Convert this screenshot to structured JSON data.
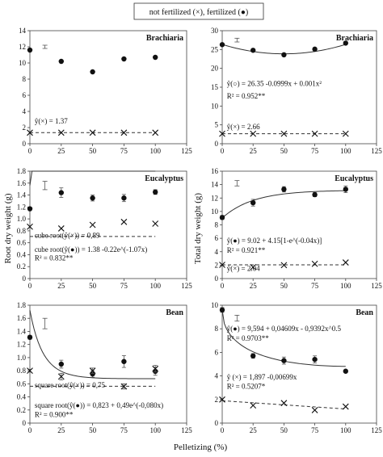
{
  "legend": {
    "text": "not fertilized (×), fertilized (●)"
  },
  "y_axis_left": "Root dry weight (g)",
  "y_axis_right": "Total dry weight (g)",
  "x_axis": "Pelletizing (%)",
  "chart_data": [
    {
      "type": "scatter",
      "title": "Brachiaria",
      "x_ticks": [
        "0",
        "25",
        "50",
        "75",
        "100",
        "125"
      ],
      "xlim": [
        0,
        125
      ],
      "ylim": [
        0,
        14
      ],
      "y_ticks": [
        "0",
        "2",
        "4",
        "6",
        "8",
        "10",
        "12",
        "14"
      ],
      "series": [
        {
          "marker": "filled-circle",
          "x": [
            0,
            25,
            50,
            75,
            100
          ],
          "y": [
            11.6,
            10.2,
            8.9,
            10.5,
            10.7
          ]
        },
        {
          "marker": "cross",
          "x": [
            0,
            25,
            50,
            75,
            100
          ],
          "y": [
            1.37,
            1.37,
            1.37,
            1.37,
            1.37
          ]
        }
      ],
      "fits": [
        {
          "series": 1,
          "style": "dashed",
          "kind": "constant",
          "value": 1.37
        }
      ],
      "error_bar_ref": {
        "x": 12,
        "y": 12,
        "half": 0.2
      },
      "equations": [
        "ŷ(×) = 1.37"
      ]
    },
    {
      "type": "scatter",
      "title": "Brachiaria",
      "x_ticks": [
        "0",
        "25",
        "50",
        "75",
        "100",
        "125"
      ],
      "xlim": [
        0,
        125
      ],
      "ylim": [
        0,
        30
      ],
      "y_ticks": [
        "0",
        "5",
        "10",
        "15",
        "20",
        "25",
        "30"
      ],
      "series": [
        {
          "marker": "filled-circle",
          "x": [
            0,
            25,
            50,
            75,
            100
          ],
          "y": [
            26.3,
            24.8,
            23.6,
            25.1,
            26.7
          ]
        },
        {
          "marker": "cross",
          "x": [
            0,
            25,
            50,
            75,
            100
          ],
          "y": [
            2.66,
            2.66,
            2.66,
            2.66,
            2.66
          ]
        }
      ],
      "fits": [
        {
          "series": 0,
          "style": "solid",
          "kind": "quadratic",
          "a": 26.35,
          "b": -0.0999,
          "c": 0.001
        },
        {
          "series": 1,
          "style": "dashed",
          "kind": "constant",
          "value": 2.66
        }
      ],
      "error_bar_ref": {
        "x": 12,
        "y": 27.5,
        "half": 0.5
      },
      "equations": [
        "ŷ(○) = 26.35 -0.0999x + 0.001x²",
        "R² = 0.952**",
        "ŷ(×) = 2.66"
      ]
    },
    {
      "type": "scatter",
      "title": "Eucalyptus",
      "x_ticks": [
        "0",
        "25",
        "50",
        "75",
        "100",
        "125"
      ],
      "xlim": [
        0,
        125
      ],
      "ylim": [
        0,
        1.8
      ],
      "y_ticks": [
        "0",
        "0.2",
        "0.4",
        "0.6",
        "0.8",
        "1.0",
        "1.2",
        "1.4",
        "1.6",
        "1.8"
      ],
      "series": [
        {
          "marker": "filled-circle",
          "x": [
            0,
            25,
            50,
            75,
            100
          ],
          "y": [
            1.17,
            1.44,
            1.35,
            1.35,
            1.45
          ],
          "err": [
            0.02,
            0.08,
            0.05,
            0.06,
            0.04
          ]
        },
        {
          "marker": "cross",
          "x": [
            0,
            25,
            50,
            75,
            100
          ],
          "y": [
            0.87,
            0.84,
            0.9,
            0.95,
            0.92
          ]
        }
      ],
      "fits": [
        {
          "series": 0,
          "style": "solid",
          "kind": "exp_rise",
          "a": 1.38,
          "b": -0.22,
          "k": -1.07,
          "cube": true
        },
        {
          "series": 1,
          "style": "dashed",
          "kind": "constant",
          "value": 0.89,
          "cube": true
        }
      ],
      "error_bar_ref": {
        "x": 12,
        "y": 1.56,
        "half": 0.07
      },
      "equations": [
        "cube root(ŷ(×)) = 0,89",
        "cube root(ŷ(●)) = 1.38 -0.22e^(-1.07x)",
        "R² = 0.832**"
      ]
    },
    {
      "type": "scatter",
      "title": "Eucalyptus",
      "x_ticks": [
        "0",
        "25",
        "50",
        "75",
        "100",
        "125"
      ],
      "xlim": [
        0,
        125
      ],
      "ylim": [
        0,
        16
      ],
      "y_ticks": [
        "0",
        "2",
        "4",
        "6",
        "8",
        "10",
        "12",
        "14",
        "16"
      ],
      "series": [
        {
          "marker": "filled-circle",
          "x": [
            0,
            25,
            50,
            75,
            100
          ],
          "y": [
            9.1,
            11.3,
            13.3,
            12.5,
            13.3
          ],
          "err": [
            0.3,
            0.5,
            0.4,
            0.3,
            0.5
          ]
        },
        {
          "marker": "cross",
          "x": [
            0,
            25,
            50,
            75,
            100
          ],
          "y": [
            2.04,
            1.7,
            2.0,
            2.2,
            2.4
          ]
        }
      ],
      "fits": [
        {
          "series": 0,
          "style": "solid",
          "kind": "mitscherlich",
          "a": 9.02,
          "b": 4.15,
          "k": -0.04
        },
        {
          "series": 1,
          "style": "dashed",
          "kind": "constant",
          "value": 2.04
        }
      ],
      "error_bar_ref": {
        "x": 12,
        "y": 14.2,
        "half": 0.4
      },
      "equations": [
        "ŷ(●) = 9.02 + 4.15[1-e^(-0.04x)]",
        "R² = 0.921**",
        "ŷ(×) = 2.04"
      ]
    },
    {
      "type": "scatter",
      "title": "Bean",
      "x_ticks": [
        "0",
        "25",
        "50",
        "75",
        "100",
        "125"
      ],
      "xlim": [
        0,
        125
      ],
      "ylim": [
        0,
        1.8
      ],
      "y_ticks": [
        "0",
        "0.2",
        "0.4",
        "0.6",
        "0.8",
        "1.0",
        "1.2",
        "1.4",
        "1.6",
        "1.8"
      ],
      "series": [
        {
          "marker": "filled-circle",
          "x": [
            0,
            25,
            50,
            75,
            100
          ],
          "y": [
            1.31,
            0.9,
            0.75,
            0.94,
            0.79
          ],
          "err": [
            0.03,
            0.06,
            0.05,
            0.09,
            0.06
          ]
        },
        {
          "marker": "cross",
          "x": [
            0,
            25,
            50,
            75,
            100
          ],
          "y": [
            0.8,
            0.71,
            0.8,
            0.56,
            0.83
          ],
          "err": [
            0.02,
            0.05,
            0.04,
            0.04,
            0.05
          ]
        }
      ],
      "fits": [
        {
          "series": 0,
          "style": "solid",
          "kind": "exp_decay",
          "a": 0.823,
          "b": 0.49,
          "k": -0.08,
          "square": true
        },
        {
          "series": 1,
          "style": "dashed",
          "kind": "constant",
          "value": 0.75,
          "square": true
        }
      ],
      "error_bar_ref": {
        "x": 12,
        "y": 1.52,
        "half": 0.08
      },
      "equations": [
        "square root(ŷ(×)) = 0,75",
        "square root(ŷ(●)) = 0,823 + 0,49e^(-0,080x)",
        "R² = 0.900**"
      ]
    },
    {
      "type": "scatter",
      "title": "Bean",
      "x_ticks": [
        "0",
        "25",
        "50",
        "75",
        "100",
        "125"
      ],
      "xlim": [
        0,
        125
      ],
      "ylim": [
        0,
        10
      ],
      "y_ticks": [
        "0",
        "2",
        "4",
        "6",
        "8",
        "10"
      ],
      "series": [
        {
          "marker": "filled-circle",
          "x": [
            0,
            25,
            50,
            75,
            100
          ],
          "y": [
            9.6,
            5.7,
            5.3,
            5.4,
            4.4
          ],
          "err": [
            0.2,
            0.2,
            0.3,
            0.3,
            0.1
          ]
        },
        {
          "marker": "cross",
          "x": [
            0,
            25,
            50,
            75,
            100
          ],
          "y": [
            2.0,
            1.5,
            1.7,
            1.1,
            1.4
          ]
        }
      ],
      "fits": [
        {
          "series": 0,
          "style": "solid",
          "kind": "poly_sqrt",
          "a": 9.594,
          "b": 0.04609,
          "c": -0.9392
        },
        {
          "series": 1,
          "style": "dashed",
          "kind": "linear",
          "a": 1.897,
          "b": -0.00699
        }
      ],
      "error_bar_ref": {
        "x": 12,
        "y": 8.9,
        "half": 0.25
      },
      "equations": [
        "ŷ(●) = 9,594 + 0,04609x - 0,9392x^0.5",
        "R² = 0.9703**",
        "ŷ (×) = 1,897 -0,00699x",
        "R² = 0.5207*"
      ]
    }
  ]
}
